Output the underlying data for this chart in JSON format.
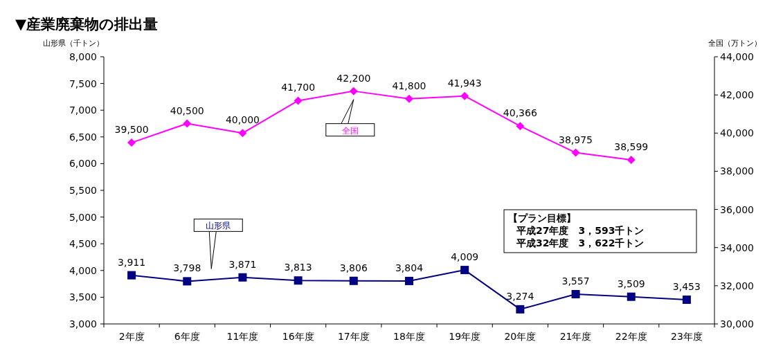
{
  "chart_data": {
    "type": "line",
    "title": "▼産業廃棄物の排出量",
    "ylabel": "山形県（千トン）",
    "y2label": "全国（万トン）",
    "categories": [
      "2年度",
      "6年度",
      "11年度",
      "16年度",
      "17年度",
      "18年度",
      "19年度",
      "20年度",
      "21年度",
      "22年度",
      "23年度"
    ],
    "series": [
      {
        "name": "全国",
        "color": "#ff00ff",
        "axis": "y2",
        "marker": "diamond",
        "values": [
          39500,
          40500,
          40000,
          41700,
          42200,
          41800,
          41943,
          40366,
          38975,
          38599,
          null
        ],
        "value_labels": [
          "39,500",
          "40,500",
          "40,000",
          "41,700",
          "42,200",
          "41,800",
          "41,943",
          "40,366",
          "38,975",
          "38,599",
          null
        ]
      },
      {
        "name": "山形県",
        "color": "#000080",
        "marker": "square",
        "values": [
          3911,
          3798,
          3871,
          3813,
          3806,
          3804,
          4009,
          3274,
          3557,
          3509,
          3453
        ],
        "value_labels": [
          "3,911",
          "3,798",
          "3,871",
          "3,813",
          "3,806",
          "3,804",
          "4,009",
          "3,274",
          "3,557",
          "3,509",
          "3,453"
        ]
      }
    ],
    "ylim": [
      3000,
      8000
    ],
    "yticks": [
      {
        "value": 3000,
        "label": "3,000"
      },
      {
        "value": 3500,
        "label": "3,500"
      },
      {
        "value": 4000,
        "label": "4,000"
      },
      {
        "value": 4500,
        "label": "4,500"
      },
      {
        "value": 5000,
        "label": "5,000"
      },
      {
        "value": 5500,
        "label": "5,500"
      },
      {
        "value": 6000,
        "label": "6,000"
      },
      {
        "value": 6500,
        "label": "6,500"
      },
      {
        "value": 7000,
        "label": "7,000"
      },
      {
        "value": 7500,
        "label": "7,500"
      },
      {
        "value": 8000,
        "label": "8,000"
      }
    ],
    "y2lim": [
      30000,
      44000
    ],
    "y2ticks": [
      {
        "value": 30000,
        "label": "30,000"
      },
      {
        "value": 32000,
        "label": "32,000"
      },
      {
        "value": 34000,
        "label": "34,000"
      },
      {
        "value": 36000,
        "label": "36,000"
      },
      {
        "value": 38000,
        "label": "38,000"
      },
      {
        "value": 40000,
        "label": "40,000"
      },
      {
        "value": 42000,
        "label": "42,000"
      },
      {
        "value": 44000,
        "label": "44,000"
      }
    ],
    "grid": false,
    "legend": false,
    "line_style": "solid",
    "annotations": [
      "【プラン目標】",
      "平成27年度　3，593千トン",
      "平成32年度　3，622千トン"
    ]
  }
}
